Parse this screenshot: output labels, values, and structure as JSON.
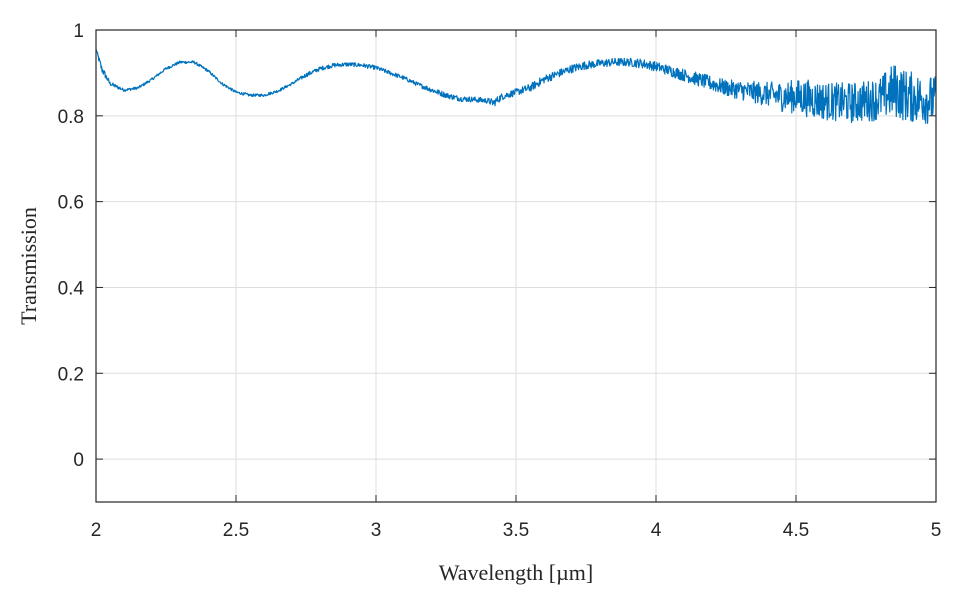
{
  "chart_data": {
    "type": "line",
    "title": "",
    "xlabel": "Wavelength [µm]",
    "ylabel": "Transmission",
    "xlim": [
      2,
      5
    ],
    "ylim": [
      -0.1,
      1
    ],
    "xticks": [
      2,
      2.5,
      3,
      3.5,
      4,
      4.5,
      5
    ],
    "xtick_labels": [
      "2",
      "2.5",
      "3",
      "3.5",
      "4",
      "4.5",
      "5"
    ],
    "yticks": [
      0,
      0.2,
      0.4,
      0.6,
      0.8,
      1
    ],
    "ytick_labels": [
      "0",
      "0.2",
      "0.4",
      "0.6",
      "0.8",
      "1"
    ],
    "grid": true,
    "legend": "none",
    "line_color": "#0072BD",
    "series": [
      {
        "x": [
          2.0,
          2.02,
          2.05,
          2.1,
          2.15,
          2.2,
          2.25,
          2.3,
          2.35,
          2.4,
          2.45,
          2.5,
          2.55,
          2.6,
          2.65,
          2.7,
          2.75,
          2.8,
          2.85,
          2.9,
          2.95,
          3.0,
          3.05,
          3.1,
          3.15,
          3.2,
          3.25,
          3.3,
          3.35,
          3.4,
          3.42,
          3.45,
          3.5,
          3.55,
          3.6,
          3.65,
          3.7,
          3.75,
          3.8,
          3.85,
          3.9,
          3.95,
          4.0,
          4.05,
          4.1,
          4.15,
          4.2,
          4.25,
          4.3,
          4.35,
          4.4,
          4.45,
          4.5,
          4.55,
          4.6,
          4.65,
          4.7,
          4.75,
          4.8,
          4.85,
          4.9,
          4.95,
          5.0
        ],
        "y": [
          0.955,
          0.91,
          0.875,
          0.86,
          0.865,
          0.885,
          0.91,
          0.925,
          0.925,
          0.905,
          0.875,
          0.855,
          0.848,
          0.848,
          0.858,
          0.875,
          0.895,
          0.91,
          0.918,
          0.92,
          0.918,
          0.912,
          0.9,
          0.888,
          0.873,
          0.86,
          0.848,
          0.84,
          0.838,
          0.835,
          0.83,
          0.845,
          0.855,
          0.865,
          0.885,
          0.898,
          0.91,
          0.918,
          0.922,
          0.925,
          0.925,
          0.922,
          0.915,
          0.905,
          0.895,
          0.885,
          0.875,
          0.865,
          0.86,
          0.855,
          0.85,
          0.845,
          0.845,
          0.84,
          0.835,
          0.832,
          0.83,
          0.835,
          0.84,
          0.86,
          0.845,
          0.84,
          0.835
        ],
        "noise": [
          0.002,
          0.006,
          0.003,
          0.002,
          0.002,
          0.002,
          0.002,
          0.002,
          0.002,
          0.002,
          0.002,
          0.002,
          0.002,
          0.002,
          0.002,
          0.002,
          0.003,
          0.003,
          0.003,
          0.003,
          0.003,
          0.003,
          0.003,
          0.003,
          0.003,
          0.004,
          0.004,
          0.004,
          0.004,
          0.004,
          0.006,
          0.005,
          0.005,
          0.006,
          0.006,
          0.006,
          0.006,
          0.006,
          0.006,
          0.006,
          0.006,
          0.007,
          0.007,
          0.008,
          0.009,
          0.01,
          0.011,
          0.012,
          0.014,
          0.016,
          0.018,
          0.022,
          0.025,
          0.028,
          0.028,
          0.028,
          0.03,
          0.03,
          0.032,
          0.04,
          0.038,
          0.036,
          0.036
        ]
      }
    ]
  }
}
